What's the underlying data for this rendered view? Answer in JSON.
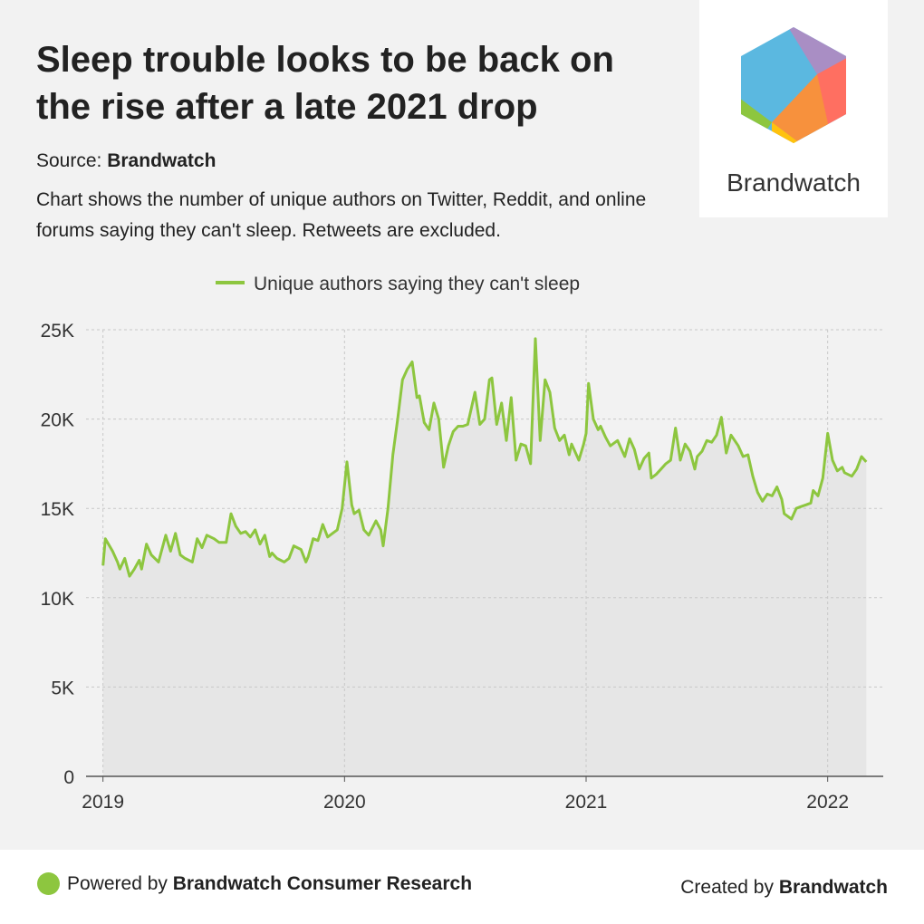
{
  "header": {
    "title": "Sleep trouble looks to be back on the rise after a late 2021 drop",
    "source_label": "Source:",
    "source": "Brandwatch",
    "description": "Chart shows the number of unique authors on Twitter, Reddit, and online forums saying they can't sleep. Retweets are excluded."
  },
  "logo": {
    "text": "Brandwatch"
  },
  "footer": {
    "powered_label": "Powered by",
    "powered_by": "Brandwatch Consumer Research",
    "created_label": "Created by",
    "created_by": "Brandwatch"
  },
  "chart_data": {
    "type": "area",
    "x": [
      2019.0,
      2019.01,
      2019.04,
      2019.06,
      2019.07,
      2019.09,
      2019.11,
      2019.13,
      2019.15,
      2019.16,
      2019.18,
      2019.2,
      2019.23,
      2019.26,
      2019.28,
      2019.3,
      2019.32,
      2019.34,
      2019.37,
      2019.39,
      2019.41,
      2019.43,
      2019.46,
      2019.48,
      2019.51,
      2019.53,
      2019.55,
      2019.57,
      2019.59,
      2019.61,
      2019.63,
      2019.65,
      2019.67,
      2019.69,
      2019.7,
      2019.72,
      2019.75,
      2019.77,
      2019.79,
      2019.82,
      2019.84,
      2019.85,
      2019.87,
      2019.89,
      2019.91,
      2019.93,
      2019.95,
      2019.97,
      2019.99,
      2020.01,
      2020.03,
      2020.04,
      2020.06,
      2020.08,
      2020.1,
      2020.13,
      2020.15,
      2020.16,
      2020.18,
      2020.2,
      2020.22,
      2020.24,
      2020.26,
      2020.28,
      2020.3,
      2020.31,
      2020.33,
      2020.35,
      2020.37,
      2020.39,
      2020.41,
      2020.43,
      2020.45,
      2020.47,
      2020.49,
      2020.51,
      2020.54,
      2020.56,
      2020.58,
      2020.6,
      2020.61,
      2020.63,
      2020.65,
      2020.67,
      2020.69,
      2020.71,
      2020.73,
      2020.75,
      2020.77,
      2020.79,
      2020.81,
      2020.83,
      2020.85,
      2020.87,
      2020.89,
      2020.91,
      2020.93,
      2020.94,
      2020.97,
      2020.99,
      2021.0,
      2021.01,
      2021.03,
      2021.05,
      2021.06,
      2021.08,
      2021.1,
      2021.13,
      2021.15,
      2021.16,
      2021.18,
      2021.2,
      2021.22,
      2021.24,
      2021.26,
      2021.27,
      2021.29,
      2021.31,
      2021.33,
      2021.35,
      2021.37,
      2021.39,
      2021.41,
      2021.43,
      2021.45,
      2021.46,
      2021.48,
      2021.5,
      2021.52,
      2021.54,
      2021.56,
      2021.58,
      2021.6,
      2021.61,
      2021.63,
      2021.65,
      2021.67,
      2021.69,
      2021.71,
      2021.73,
      2021.75,
      2021.77,
      2021.79,
      2021.81,
      2021.82,
      2021.85,
      2021.87,
      2021.89,
      2021.91,
      2021.93,
      2021.94,
      2021.96,
      2021.98,
      2022.0,
      2022.02,
      2022.04,
      2022.06,
      2022.07,
      2022.1,
      2022.12,
      2022.14,
      2022.16
    ],
    "series": [
      {
        "name": "Unique authors saying they can't sleep",
        "color": "#8dc63f",
        "values": [
          11800,
          13300,
          12600,
          12000,
          11600,
          12200,
          11200,
          11600,
          12100,
          11600,
          13000,
          12400,
          12000,
          13500,
          12600,
          13600,
          12400,
          12200,
          12000,
          13300,
          12800,
          13500,
          13300,
          13100,
          13100,
          14700,
          14000,
          13600,
          13700,
          13400,
          13800,
          13000,
          13500,
          12300,
          12500,
          12200,
          12000,
          12200,
          12900,
          12700,
          12000,
          12300,
          13300,
          13200,
          14100,
          13400,
          13600,
          13800,
          15000,
          17600,
          15200,
          14700,
          14900,
          13800,
          13500,
          14300,
          13800,
          12900,
          15000,
          18000,
          20000,
          22200,
          22800,
          23200,
          21200,
          21300,
          19800,
          19400,
          20900,
          20000,
          17300,
          18500,
          19300,
          19600,
          19600,
          19700,
          21500,
          19700,
          20000,
          22200,
          22300,
          19700,
          20900,
          18800,
          21200,
          17700,
          18600,
          18500,
          17500,
          24500,
          18800,
          22200,
          21500,
          19500,
          18800,
          19100,
          18000,
          18600,
          17700,
          18600,
          19200,
          22000,
          20000,
          19400,
          19600,
          19000,
          18500,
          18800,
          18200,
          17900,
          18900,
          18300,
          17200,
          17800,
          18100,
          16700,
          16900,
          17200,
          17500,
          17700,
          19500,
          17700,
          18600,
          18200,
          17200,
          17900,
          18200,
          18800,
          18700,
          19100,
          20100,
          18100,
          19100,
          18900,
          18500,
          17900,
          18000,
          16800,
          15900,
          15400,
          15800,
          15700,
          16200,
          15500,
          14700,
          14400,
          15000,
          15100,
          15200,
          15300,
          16000,
          15700,
          16700,
          19200,
          17700,
          17100,
          17300,
          17000,
          16800,
          17200,
          17900,
          17600
        ]
      }
    ],
    "area_color": "#e6e6e6",
    "xlim": [
      2018.93,
      2022.23
    ],
    "xticks": [
      2019,
      2020,
      2021,
      2022
    ],
    "ylim": [
      0,
      25000
    ],
    "yticks": [
      0,
      {
        "value": 5000,
        "label": "5K"
      },
      {
        "value": 10000,
        "label": "10K"
      },
      {
        "value": 15000,
        "label": "15K"
      },
      {
        "value": 20000,
        "label": "20K"
      },
      {
        "value": 25000,
        "label": "25K"
      }
    ],
    "grid": true,
    "legend": "top"
  }
}
